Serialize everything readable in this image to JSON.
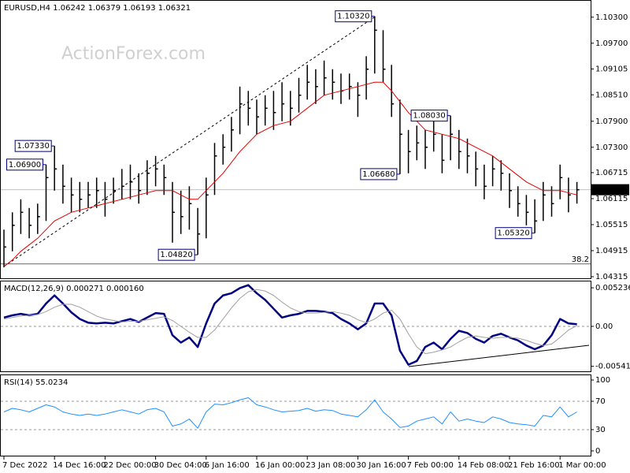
{
  "chart_data": [
    {
      "type": "ohlc",
      "title": "EURUSD,H4  1.06242 1.06379 1.06193 1.06321",
      "watermark": "ActionForex.com",
      "color": "#000000",
      "categories": [
        "7 Dec 2022",
        null,
        null,
        null,
        null,
        null,
        "14 Dec 16:00",
        null,
        null,
        null,
        null,
        null,
        "22 Dec 00:00",
        null,
        null,
        null,
        null,
        null,
        "30 Dec 04:00",
        null,
        null,
        null,
        null,
        null,
        "6 Jan 16:00",
        null,
        null,
        null,
        null,
        null,
        "16 Jan 00:00",
        null,
        null,
        null,
        null,
        null,
        "23 Jan 08:00",
        null,
        null,
        null,
        null,
        null,
        "30 Jan 16:00",
        null,
        null,
        null,
        null,
        null,
        "7 Feb 00:00",
        null,
        null,
        null,
        null,
        null,
        "14 Feb 08:00",
        null,
        null,
        null,
        null,
        null,
        "21 Feb 16:00",
        null,
        null,
        null,
        null,
        null,
        "1 Mar 00:00",
        null,
        null
      ],
      "high": [
        1.054,
        1.058,
        1.061,
        1.059,
        1.06,
        1.069,
        1.0733,
        1.069,
        1.066,
        1.065,
        1.065,
        1.066,
        1.065,
        1.066,
        1.068,
        1.069,
        1.067,
        1.07,
        1.071,
        1.069,
        1.065,
        1.063,
        1.064,
        1.059,
        1.066,
        1.074,
        1.076,
        1.08,
        1.087,
        1.086,
        1.084,
        1.085,
        1.086,
        1.088,
        1.086,
        1.089,
        1.092,
        1.091,
        1.093,
        1.091,
        1.09,
        1.09,
        1.088,
        1.094,
        1.1032,
        1.1,
        1.092,
        1.084,
        1.077,
        1.078,
        1.077,
        1.08,
        1.076,
        1.0803,
        1.077,
        1.075,
        1.072,
        1.069,
        1.071,
        1.07,
        1.067,
        1.064,
        1.062,
        1.061,
        1.065,
        1.064,
        1.069,
        1.066,
        1.065
      ],
      "low": [
        1.0453,
        1.049,
        1.053,
        1.052,
        1.053,
        1.056,
        1.063,
        1.06,
        1.058,
        1.058,
        1.059,
        1.059,
        1.057,
        1.06,
        1.061,
        1.061,
        1.06,
        1.062,
        1.064,
        1.062,
        1.051,
        1.053,
        1.054,
        1.0482,
        1.052,
        1.062,
        1.069,
        1.072,
        1.076,
        1.078,
        1.076,
        1.078,
        1.077,
        1.079,
        1.078,
        1.081,
        1.084,
        1.083,
        1.085,
        1.084,
        1.083,
        1.084,
        1.08,
        1.084,
        1.09,
        1.088,
        1.08,
        1.0668,
        1.067,
        1.07,
        1.068,
        1.072,
        1.067,
        1.07,
        1.068,
        1.067,
        1.064,
        1.061,
        1.064,
        1.063,
        1.059,
        1.057,
        1.055,
        1.0532,
        1.056,
        1.057,
        1.061,
        1.058,
        1.06
      ],
      "close": [
        1.05,
        1.055,
        1.058,
        1.055,
        1.057,
        1.066,
        1.068,
        1.064,
        1.062,
        1.061,
        1.062,
        1.063,
        1.061,
        1.063,
        1.064,
        1.065,
        1.063,
        1.067,
        1.068,
        1.066,
        1.058,
        1.057,
        1.06,
        1.053,
        1.062,
        1.071,
        1.073,
        1.077,
        1.083,
        1.082,
        1.08,
        1.082,
        1.081,
        1.083,
        1.082,
        1.085,
        1.088,
        1.087,
        1.089,
        1.088,
        1.086,
        1.087,
        1.085,
        1.091,
        1.1,
        1.091,
        1.083,
        1.076,
        1.072,
        1.074,
        1.073,
        1.076,
        1.07,
        1.076,
        1.072,
        1.071,
        1.068,
        1.064,
        1.068,
        1.067,
        1.063,
        1.06,
        1.058,
        1.056,
        1.062,
        1.06,
        1.066,
        1.062,
        1.0632
      ],
      "ma": {
        "color": "#e00000",
        "values": [
          1.0455,
          1.047,
          1.049,
          1.0505,
          1.052,
          1.054,
          1.056,
          1.057,
          1.058,
          1.0585,
          1.059,
          1.0595,
          1.06,
          1.0605,
          1.061,
          1.0615,
          1.062,
          1.0625,
          1.063,
          1.063,
          1.063,
          1.062,
          1.061,
          1.061,
          1.063,
          1.065,
          1.067,
          1.0695,
          1.072,
          1.074,
          1.076,
          1.077,
          1.078,
          1.0785,
          1.079,
          1.0805,
          1.082,
          1.0835,
          1.085,
          1.0855,
          1.086,
          1.0865,
          1.087,
          1.0875,
          1.088,
          1.088,
          1.086,
          1.0835,
          1.081,
          1.079,
          1.077,
          1.0765,
          1.076,
          1.0755,
          1.075,
          1.074,
          1.073,
          1.072,
          1.071,
          1.0695,
          1.068,
          1.0665,
          1.065,
          1.064,
          1.063,
          1.063,
          1.063,
          1.0625,
          1.062
        ]
      },
      "current": {
        "value": 1.06321,
        "label": "1.06321"
      },
      "level": {
        "value": 1.04609,
        "label": "38.2"
      },
      "annotations": [
        {
          "value": 1.1032,
          "label": "1.10320"
        },
        {
          "value": 1.0733,
          "label": "1.07330"
        },
        {
          "value": 1.0482,
          "label": "1.04820"
        },
        {
          "value": 1.0668,
          "label": "1.06680"
        },
        {
          "value": 1.0803,
          "label": "1.08030"
        },
        {
          "value": 1.069,
          "label": "1.06900"
        },
        {
          "value": 1.0532,
          "label": "1.05320"
        }
      ],
      "ylim": [
        1.0426,
        1.1066
      ],
      "yticks": [
        {
          "value": 1.103,
          "label": "1.10300"
        },
        {
          "value": 1.097,
          "label": "1.09700"
        },
        {
          "value": 1.09105,
          "label": "1.09105"
        },
        {
          "value": 1.0851,
          "label": "1.08510"
        },
        {
          "value": 1.079,
          "label": "1.07900"
        },
        {
          "value": 1.073,
          "label": "1.07300"
        },
        {
          "value": 1.06715,
          "label": "1.06715"
        },
        {
          "value": 1.06115,
          "label": "1.06115"
        },
        {
          "value": 1.05515,
          "label": "1.05515"
        },
        {
          "value": 1.04915,
          "label": "1.04915"
        },
        {
          "value": 1.04315,
          "label": "1.04315"
        }
      ]
    },
    {
      "type": "line",
      "title": "MACD(12,26,9) 0.000271 0.000160",
      "series": [
        {
          "color": "#000080",
          "width": 2.5,
          "values": [
            0.0012,
            0.0015,
            0.0017,
            0.0015,
            0.0017,
            0.0031,
            0.0042,
            0.0031,
            0.0019,
            0.001,
            0.0005,
            0.0004,
            0.0005,
            0.0004,
            0.0007,
            0.001,
            0.0006,
            0.0012,
            0.0018,
            0.0017,
            -0.0012,
            -0.0022,
            -0.0015,
            -0.0028,
            0.0004,
            0.0031,
            0.0042,
            0.0045,
            0.0052,
            0.0056,
            0.0045,
            0.0036,
            0.0024,
            0.0012,
            0.0015,
            0.0017,
            0.0021,
            0.0021,
            0.002,
            0.0018,
            0.001,
            0.0004,
            -0.0004,
            0.0004,
            0.0031,
            0.0031,
            0.0015,
            -0.0033,
            -0.0052,
            -0.0047,
            -0.0028,
            -0.0022,
            -0.0031,
            -0.0017,
            -0.0006,
            -0.0009,
            -0.0017,
            -0.0022,
            -0.0013,
            -0.001,
            -0.0015,
            -0.0019,
            -0.0026,
            -0.0031,
            -0.0026,
            -0.0012,
            0.001,
            0.0004,
            0.0003
          ]
        },
        {
          "color": "#a0a0a0",
          "width": 1,
          "values": [
            0.001,
            0.0012,
            0.0014,
            0.0015,
            0.0016,
            0.002,
            0.0026,
            0.003,
            0.003,
            0.0026,
            0.002,
            0.0014,
            0.001,
            0.0008,
            0.0006,
            0.0007,
            0.0007,
            0.0009,
            0.0011,
            0.0013,
            0.0008,
            0.0,
            -0.0008,
            -0.0015,
            -0.0015,
            -0.0005,
            0.001,
            0.0025,
            0.0038,
            0.0047,
            0.005,
            0.0048,
            0.0042,
            0.0033,
            0.0025,
            0.002,
            0.0018,
            0.0018,
            0.0019,
            0.002,
            0.0018,
            0.0015,
            0.0009,
            0.0005,
            0.001,
            0.0018,
            0.0022,
            0.001,
            -0.001,
            -0.0028,
            -0.0037,
            -0.0035,
            -0.0032,
            -0.0028,
            -0.0021,
            -0.0015,
            -0.0013,
            -0.0015,
            -0.0016,
            -0.0015,
            -0.0015,
            -0.0016,
            -0.0019,
            -0.0023,
            -0.0026,
            -0.0024,
            -0.0015,
            -0.0005,
            0.0001
          ]
        }
      ],
      "levels": [
        0
      ],
      "ylim": [
        -0.0061,
        0.0061
      ],
      "yticks": [
        0.005236,
        {
          "value": 0,
          "label": "0.00"
        },
        -0.005416
      ]
    },
    {
      "type": "line",
      "title": "RSI(14) 55.0234",
      "series": [
        {
          "color": "#1e90ff",
          "width": 1,
          "values": [
            55,
            60,
            58,
            55,
            60,
            65,
            62,
            55,
            52,
            50,
            52,
            50,
            52,
            55,
            58,
            55,
            52,
            58,
            60,
            55,
            35,
            38,
            45,
            32,
            55,
            66,
            65,
            68,
            72,
            75,
            65,
            62,
            58,
            55,
            56,
            57,
            60,
            56,
            58,
            57,
            52,
            50,
            48,
            58,
            72,
            55,
            45,
            33,
            35,
            42,
            45,
            48,
            38,
            55,
            42,
            45,
            42,
            40,
            48,
            45,
            40,
            38,
            37,
            35,
            50,
            48,
            62,
            48,
            55
          ]
        }
      ],
      "levels": [
        70,
        30
      ],
      "ylim": [
        -6.7,
        106.7
      ],
      "yticks": [
        100,
        70,
        30,
        0
      ]
    }
  ]
}
